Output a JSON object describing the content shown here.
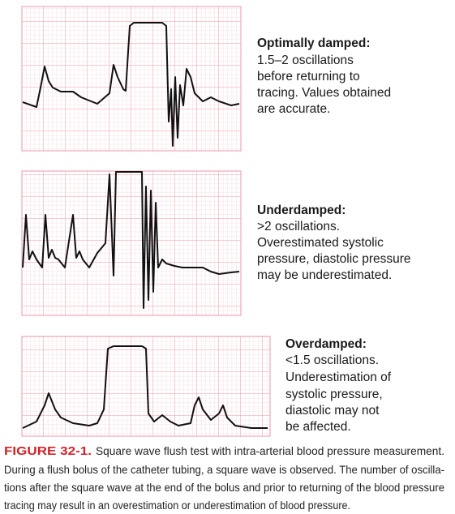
{
  "panels": [
    {
      "title": "Optimally damped:",
      "lines": [
        "1.5–2 oscillations",
        "before returning to",
        "tracing. Values obtained",
        "are accurate."
      ]
    },
    {
      "title": "Underdamped:",
      "lines": [
        ">2 oscillations.",
        "Overestimated systolic",
        "pressure, diastolic pressure",
        "may be underestimated."
      ]
    },
    {
      "title": "Overdamped:",
      "lines": [
        "<1.5 oscillations.",
        "Underestimation of",
        "systolic pressure,",
        "diastolic may not",
        "be affected."
      ]
    }
  ],
  "caption": {
    "label": "FIGURE 32-1.",
    "lines": [
      "Square wave flush test with intra-arterial blood pressure measurement.",
      "During a flush bolus of the catheter tubing, a square wave is observed. The number of oscilla-",
      "tions after the square wave at the end of the bolus and prior to returning of the blood pressure",
      "tracing may result in an overestimation or underestimation of blood pressure."
    ]
  }
}
